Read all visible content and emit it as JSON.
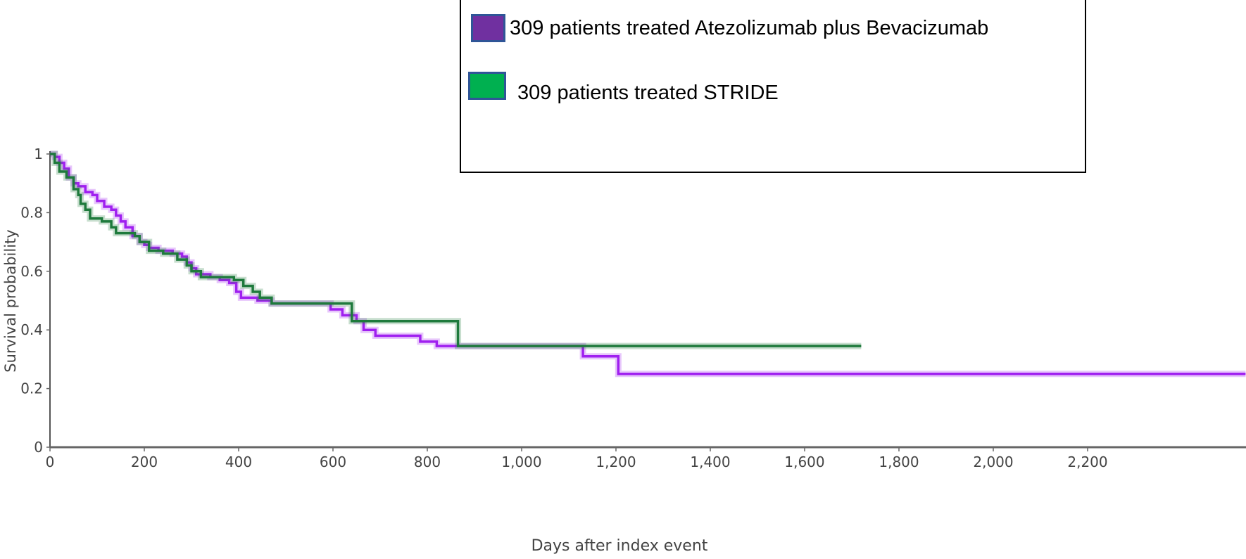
{
  "chart_data": {
    "type": "line",
    "subtype": "kaplan-meier step",
    "xlabel": "Days after index event",
    "ylabel": "Survival probability",
    "xlim": [
      0,
      2535
    ],
    "ylim": [
      0,
      1
    ],
    "x_ticks": [
      0,
      200,
      400,
      600,
      800,
      1000,
      1200,
      1400,
      1600,
      1800,
      2000,
      2200
    ],
    "x_tick_labels": [
      "0",
      "200",
      "400",
      "600",
      "800",
      "1,000",
      "1,200",
      "1,400",
      "1,600",
      "1,800",
      "2,000",
      "2,200"
    ],
    "y_ticks": [
      0,
      0.2,
      0.4,
      0.6,
      0.8,
      1
    ],
    "y_tick_labels": [
      "0",
      "0.2",
      "0.4",
      "0.6",
      "0.8",
      "1"
    ],
    "grid": false,
    "legend_position": "top-right",
    "series": [
      {
        "name": "309 patients treated Atezolizumab plus Bevacizumab",
        "line_color": "#a020f0",
        "swatch_color": "#7030a0",
        "points": [
          [
            0,
            1
          ],
          [
            10,
            0.99
          ],
          [
            20,
            0.97
          ],
          [
            30,
            0.95
          ],
          [
            40,
            0.92
          ],
          [
            50,
            0.9
          ],
          [
            60,
            0.89
          ],
          [
            75,
            0.87
          ],
          [
            90,
            0.86
          ],
          [
            100,
            0.84
          ],
          [
            115,
            0.82
          ],
          [
            130,
            0.81
          ],
          [
            140,
            0.79
          ],
          [
            150,
            0.77
          ],
          [
            160,
            0.75
          ],
          [
            175,
            0.72
          ],
          [
            190,
            0.7
          ],
          [
            200,
            0.69
          ],
          [
            210,
            0.68
          ],
          [
            230,
            0.67
          ],
          [
            260,
            0.66
          ],
          [
            280,
            0.65
          ],
          [
            290,
            0.63
          ],
          [
            300,
            0.61
          ],
          [
            310,
            0.59
          ],
          [
            340,
            0.58
          ],
          [
            360,
            0.57
          ],
          [
            380,
            0.56
          ],
          [
            395,
            0.53
          ],
          [
            405,
            0.51
          ],
          [
            440,
            0.5
          ],
          [
            470,
            0.49
          ],
          [
            595,
            0.47
          ],
          [
            620,
            0.45
          ],
          [
            650,
            0.43
          ],
          [
            665,
            0.4
          ],
          [
            690,
            0.38
          ],
          [
            785,
            0.36
          ],
          [
            820,
            0.345
          ],
          [
            1130,
            0.31
          ],
          [
            1205,
            0.25
          ],
          [
            2535,
            0.25
          ]
        ]
      },
      {
        "name": "309 patients treated STRIDE",
        "line_color": "#1e7a3c",
        "swatch_color": "#00b050",
        "points": [
          [
            0,
            1
          ],
          [
            10,
            0.97
          ],
          [
            20,
            0.94
          ],
          [
            35,
            0.92
          ],
          [
            50,
            0.88
          ],
          [
            60,
            0.86
          ],
          [
            65,
            0.83
          ],
          [
            75,
            0.81
          ],
          [
            85,
            0.78
          ],
          [
            110,
            0.77
          ],
          [
            130,
            0.75
          ],
          [
            140,
            0.73
          ],
          [
            180,
            0.72
          ],
          [
            190,
            0.7
          ],
          [
            210,
            0.67
          ],
          [
            240,
            0.66
          ],
          [
            270,
            0.64
          ],
          [
            290,
            0.62
          ],
          [
            300,
            0.6
          ],
          [
            320,
            0.58
          ],
          [
            390,
            0.57
          ],
          [
            410,
            0.55
          ],
          [
            430,
            0.53
          ],
          [
            445,
            0.51
          ],
          [
            470,
            0.49
          ],
          [
            640,
            0.43
          ],
          [
            865,
            0.345
          ],
          [
            1720,
            0.345
          ]
        ]
      }
    ]
  }
}
